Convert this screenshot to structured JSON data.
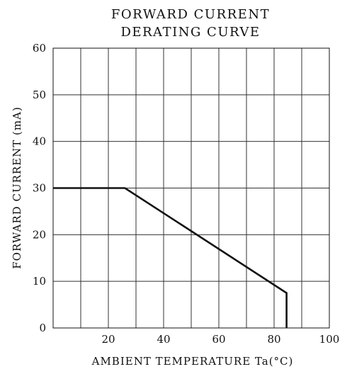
{
  "chart_data": {
    "type": "line",
    "title": [
      "FORWARD CURRENT",
      "DERATING CURVE"
    ],
    "xlabel": "AMBIENT TEMPERATURE Ta(°C)",
    "ylabel": "FORWARD CURRENT (mA)",
    "xlim": [
      0,
      100
    ],
    "ylim": [
      0,
      60
    ],
    "xticks": [
      {
        "value": 20,
        "label": "20"
      },
      {
        "value": 40,
        "label": "40"
      },
      {
        "value": 60,
        "label": "60"
      },
      {
        "value": 80,
        "label": "80"
      },
      {
        "value": 100,
        "label": "100"
      }
    ],
    "yticks": [
      {
        "value": 0,
        "label": "0"
      },
      {
        "value": 10,
        "label": "10"
      },
      {
        "value": 20,
        "label": "20"
      },
      {
        "value": 30,
        "label": "30"
      },
      {
        "value": 40,
        "label": "40"
      },
      {
        "value": 50,
        "label": "50"
      },
      {
        "value": 60,
        "label": "60"
      }
    ],
    "grid": true,
    "series": [
      {
        "points": [
          {
            "x": 0,
            "y": 30
          },
          {
            "x": 26,
            "y": 30
          },
          {
            "x": 84.5,
            "y": 7.5
          },
          {
            "x": 84.5,
            "y": 0
          }
        ]
      }
    ]
  }
}
